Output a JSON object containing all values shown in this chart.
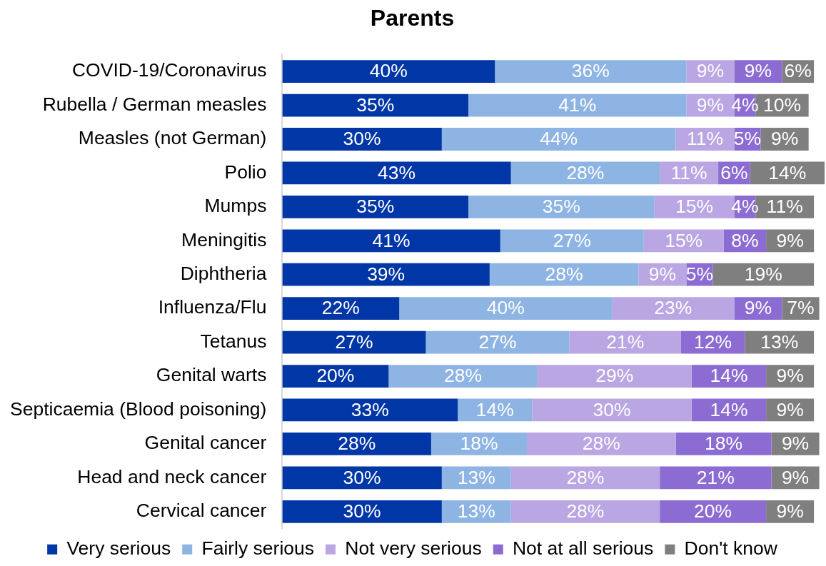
{
  "chart_data": {
    "type": "bar",
    "title": "Parents",
    "orientation": "horizontal",
    "stacked": true,
    "legend": "bottom",
    "categories": [
      "COVID-19/Coronavirus",
      "Rubella / German measles",
      "Measles (not German)",
      "Polio",
      "Mumps",
      "Meningitis",
      "Diphtheria",
      "Influenza/Flu",
      "Tetanus",
      "Genital warts",
      "Septicaemia (Blood poisoning)",
      "Genital cancer",
      "Head and neck cancer",
      "Cervical cancer"
    ],
    "series": [
      {
        "name": "Very serious",
        "color": "#0036a6",
        "values": [
          40,
          35,
          30,
          43,
          35,
          41,
          39,
          22,
          27,
          20,
          33,
          28,
          30,
          30
        ],
        "value_labels": [
          "40%",
          "35%",
          "30%",
          "43%",
          "35%",
          "41%",
          "39%",
          "22%",
          "27%",
          "20%",
          "33%",
          "28%",
          "30%",
          "30%"
        ]
      },
      {
        "name": "Fairly serious",
        "color": "#8eb4e3",
        "values": [
          36,
          41,
          44,
          28,
          35,
          27,
          28,
          40,
          27,
          28,
          14,
          18,
          13,
          13
        ],
        "value_labels": [
          "36%",
          "41%",
          "44%",
          "28%",
          "35%",
          "27%",
          "28%",
          "40%",
          "27%",
          "28%",
          "14%",
          "18%",
          "13%",
          "13%"
        ]
      },
      {
        "name": "Not very serious",
        "color": "#b9a6e3",
        "values": [
          9,
          9,
          11,
          11,
          15,
          15,
          9,
          23,
          21,
          29,
          30,
          28,
          28,
          28
        ],
        "value_labels": [
          "9%",
          "9%",
          "11%",
          "11%",
          "15%",
          "15%",
          "9%",
          "23%",
          "21%",
          "29%",
          "30%",
          "28%",
          "28%",
          "28%"
        ]
      },
      {
        "name": "Not at all serious",
        "color": "#8c6cd2",
        "values": [
          9,
          4,
          5,
          6,
          4,
          8,
          5,
          9,
          12,
          14,
          14,
          18,
          21,
          20
        ],
        "value_labels": [
          "9%",
          "4%",
          "5%",
          "6%",
          "4%",
          "8%",
          "5%",
          "9%",
          "12%",
          "14%",
          "14%",
          "18%",
          "21%",
          "20%"
        ]
      },
      {
        "name": "Don't know",
        "color": "#7f7f7f",
        "values": [
          6,
          10,
          9,
          14,
          11,
          9,
          19,
          7,
          13,
          9,
          9,
          9,
          9,
          9
        ],
        "value_labels": [
          "6%",
          "10%",
          "9%",
          "14%",
          "11%",
          "9%",
          "19%",
          "7%",
          "13%",
          "9%",
          "9%",
          "9%",
          "9%",
          "9%"
        ]
      }
    ]
  }
}
